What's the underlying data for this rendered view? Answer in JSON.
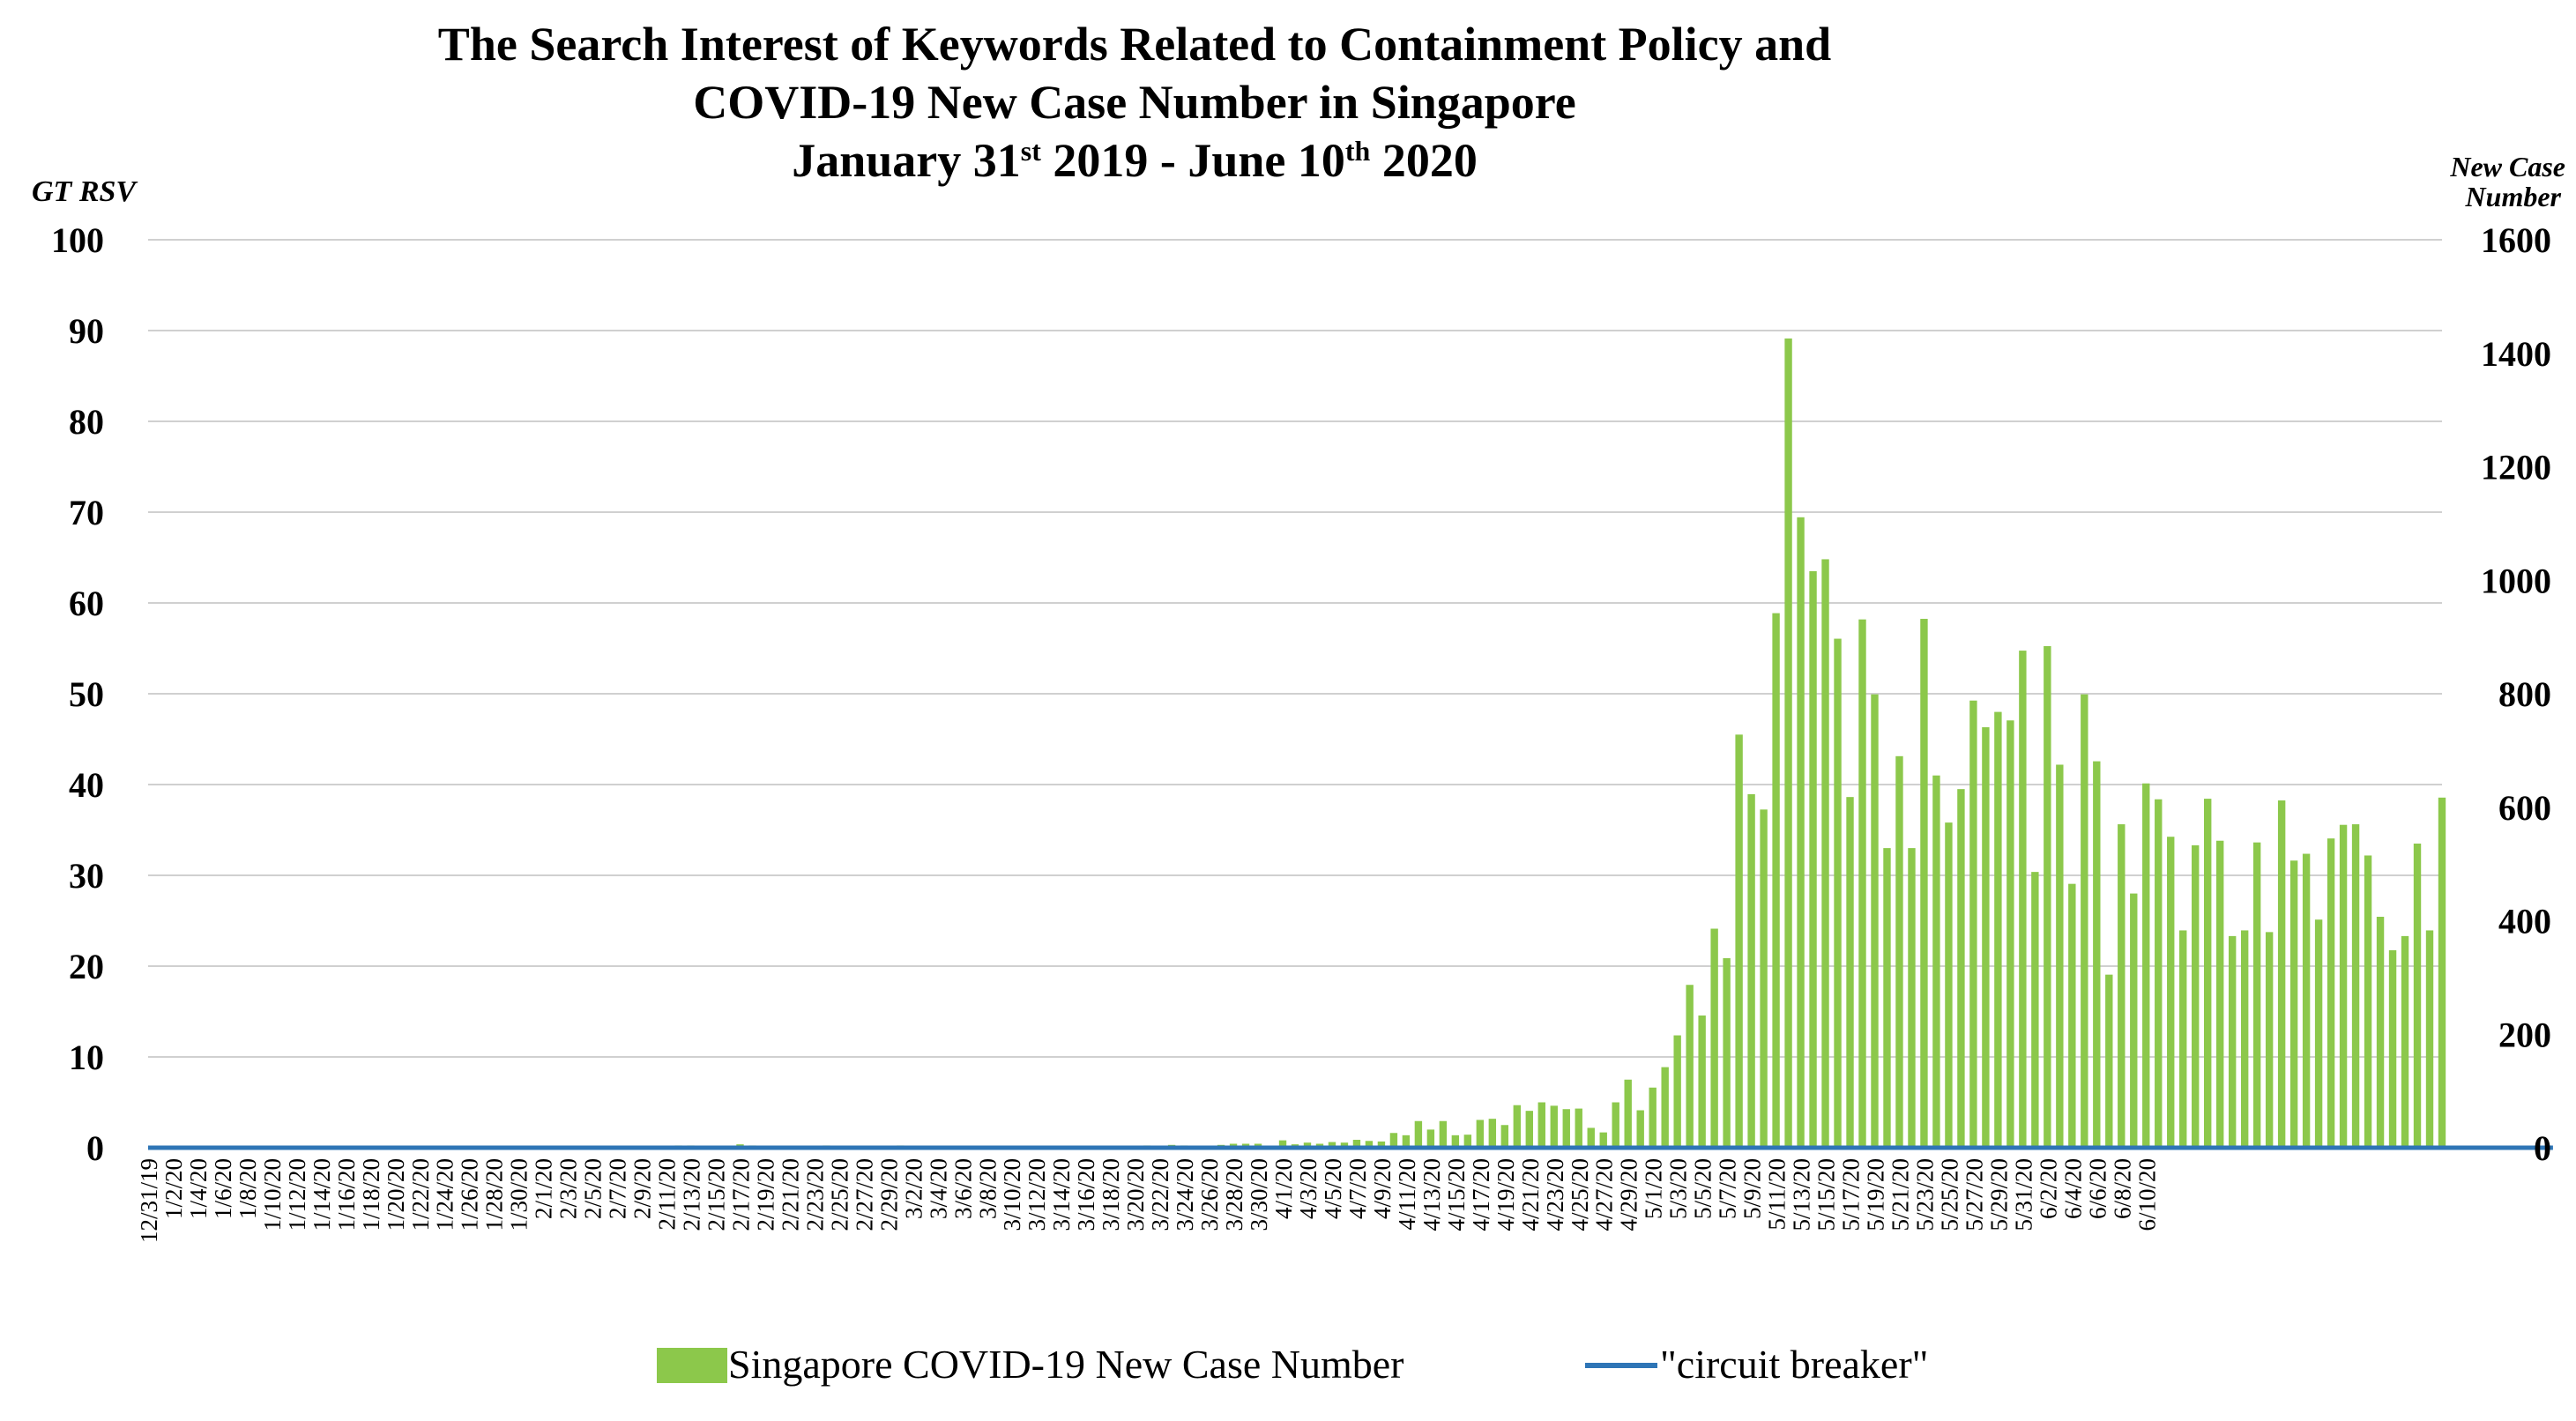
{
  "chart_data": {
    "type": "bar+line",
    "title_lines": [
      "The Search Interest of Keywords Related to Containment Policy and",
      "COVID-19 New Case Number in Singapore"
    ],
    "subtitle": {
      "month1": "January 31",
      "sup1": "st",
      "mid": " 2019 - June 10",
      "sup2": "th",
      "tail": " 2020"
    },
    "left_axis": {
      "label": "GT RSV",
      "ylim": [
        0,
        100
      ],
      "ticks": [
        "0",
        "10",
        "20",
        "30",
        "40",
        "50",
        "60",
        "70",
        "80",
        "90",
        "100"
      ]
    },
    "right_axis": {
      "label_line1": "New Case",
      "label_line2": "Number",
      "ylim": [
        0,
        1600
      ],
      "ticks": [
        "0",
        "200",
        "400",
        "600",
        "800",
        "1000",
        "1200",
        "1400",
        "1600"
      ]
    },
    "grid": true,
    "x_labels": [
      "12/31/19",
      "1/2/20",
      "1/4/20",
      "1/6/20",
      "1/8/20",
      "1/10/20",
      "1/12/20",
      "1/14/20",
      "1/16/20",
      "1/18/20",
      "1/20/20",
      "1/22/20",
      "1/24/20",
      "1/26/20",
      "1/28/20",
      "1/30/20",
      "2/1/20",
      "2/3/20",
      "2/5/20",
      "2/7/20",
      "2/9/20",
      "2/11/20",
      "2/13/20",
      "2/15/20",
      "2/17/20",
      "2/19/20",
      "2/21/20",
      "2/23/20",
      "2/25/20",
      "2/27/20",
      "2/29/20",
      "3/2/20",
      "3/4/20",
      "3/6/20",
      "3/8/20",
      "3/10/20",
      "3/12/20",
      "3/14/20",
      "3/16/20",
      "3/18/20",
      "3/20/20",
      "3/22/20",
      "3/24/20",
      "3/26/20",
      "3/28/20",
      "3/30/20",
      "4/1/20",
      "4/3/20",
      "4/5/20",
      "4/7/20",
      "4/9/20",
      "4/11/20",
      "4/13/20",
      "4/15/20",
      "4/17/20",
      "4/19/20",
      "4/21/20",
      "4/23/20",
      "4/25/20",
      "4/27/20",
      "4/29/20",
      "5/1/20",
      "5/3/20",
      "5/5/20",
      "5/7/20",
      "5/9/20",
      "5/11/20",
      "5/13/20",
      "5/15/20",
      "5/17/20",
      "5/19/20",
      "5/21/20",
      "5/23/20",
      "5/25/20",
      "5/27/20",
      "5/29/20",
      "5/31/20",
      "6/2/20",
      "6/4/20",
      "6/6/20",
      "6/8/20",
      "6/10/20"
    ],
    "series": [
      {
        "name": "Singapore COVID-19 New Case Number",
        "type": "bar",
        "axis": "right",
        "color": "#8cc84b",
        "start_date": "2019-12-31",
        "values": [
          0,
          0,
          0,
          0,
          0,
          0,
          0,
          0,
          0,
          0,
          0,
          0,
          0,
          0,
          0,
          0,
          0,
          0,
          0,
          0,
          0,
          0,
          0,
          1,
          1,
          0,
          1,
          3,
          0,
          2,
          3,
          0,
          0,
          0,
          0,
          0,
          1,
          0,
          2,
          3,
          0,
          0,
          0,
          4,
          4,
          0,
          1,
          3,
          6,
          4,
          0,
          3,
          2,
          2,
          2,
          4,
          1,
          2,
          1,
          0,
          2,
          4,
          1,
          2,
          2,
          1,
          1,
          0,
          0,
          2,
          0,
          0,
          3,
          1,
          1,
          2,
          0,
          1,
          2,
          1,
          1,
          4,
          1,
          5,
          4,
          3,
          3,
          5,
          7,
          7,
          7,
          0,
          13,
          6,
          9,
          7,
          10,
          9,
          14,
          12,
          11,
          26,
          22,
          47,
          32,
          47,
          22,
          23,
          49,
          51,
          40,
          75,
          65,
          80,
          74,
          68,
          69,
          35,
          27,
          80,
          120,
          66,
          106,
          142,
          198,
          287,
          233,
          386,
          334,
          728,
          623,
          596,
          942,
          1426,
          1111,
          1016,
          1037,
          897,
          618,
          931,
          799,
          528,
          690,
          528,
          932,
          656,
          573,
          632,
          788,
          741,
          768,
          753,
          876,
          486,
          884,
          675,
          465,
          799,
          681,
          305,
          570,
          448,
          642,
          614,
          548,
          383,
          533,
          615,
          541,
          373,
          383,
          538,
          380,
          612,
          506,
          518,
          402,
          545,
          569,
          570,
          515,
          407,
          348,
          373,
          536,
          383,
          617
        ]
      },
      {
        "name": "\"circuit breaker\"",
        "type": "line",
        "axis": "left",
        "color": "#2e75b6",
        "start_date": "2019-12-31",
        "values": [
          0,
          0,
          0,
          0,
          0,
          0,
          0,
          0,
          0,
          0,
          0,
          0,
          0,
          0,
          0,
          0,
          0,
          0,
          0,
          0,
          0,
          0,
          0,
          0,
          0,
          0,
          0,
          0,
          0,
          0,
          0,
          0,
          0,
          0,
          0,
          0,
          0,
          0,
          0,
          0,
          0,
          0,
          0,
          0,
          0,
          0,
          0,
          0,
          0,
          0,
          0,
          0,
          0,
          0,
          0,
          0,
          0,
          0,
          0,
          0,
          0,
          0,
          0,
          0,
          0,
          0,
          0,
          0,
          0,
          0,
          0,
          0,
          0,
          0,
          0,
          0,
          0,
          0,
          0,
          0,
          0,
          0,
          0,
          0,
          0,
          0,
          0,
          0,
          0,
          0,
          0,
          0,
          0,
          0,
          0,
          0,
          0,
          0,
          0,
          0,
          0,
          0,
          0,
          0,
          0,
          0,
          0,
          0,
          0,
          0,
          0,
          0,
          0,
          0,
          0,
          0,
          0,
          0,
          0,
          0,
          0,
          0,
          0,
          0,
          0,
          0,
          0,
          0,
          0,
          0,
          0,
          0,
          0,
          0,
          0,
          0,
          0,
          0,
          0,
          0,
          0,
          0,
          0,
          0,
          0,
          0,
          0,
          0,
          0,
          0,
          0,
          0,
          0,
          0,
          0,
          0,
          0,
          0,
          0,
          0,
          0,
          0,
          0,
          0,
          0,
          0,
          0,
          0,
          0,
          0,
          0,
          0,
          0,
          0,
          0,
          0,
          0,
          0,
          0,
          0,
          0,
          0,
          0,
          0,
          0,
          0,
          0,
          0,
          0,
          0,
          0,
          0,
          0,
          0,
          0,
          0
        ]
      }
    ]
  },
  "legend": {
    "bar_label": "Singapore COVID-19 New Case Number",
    "line_label": "\"circuit breaker\""
  }
}
